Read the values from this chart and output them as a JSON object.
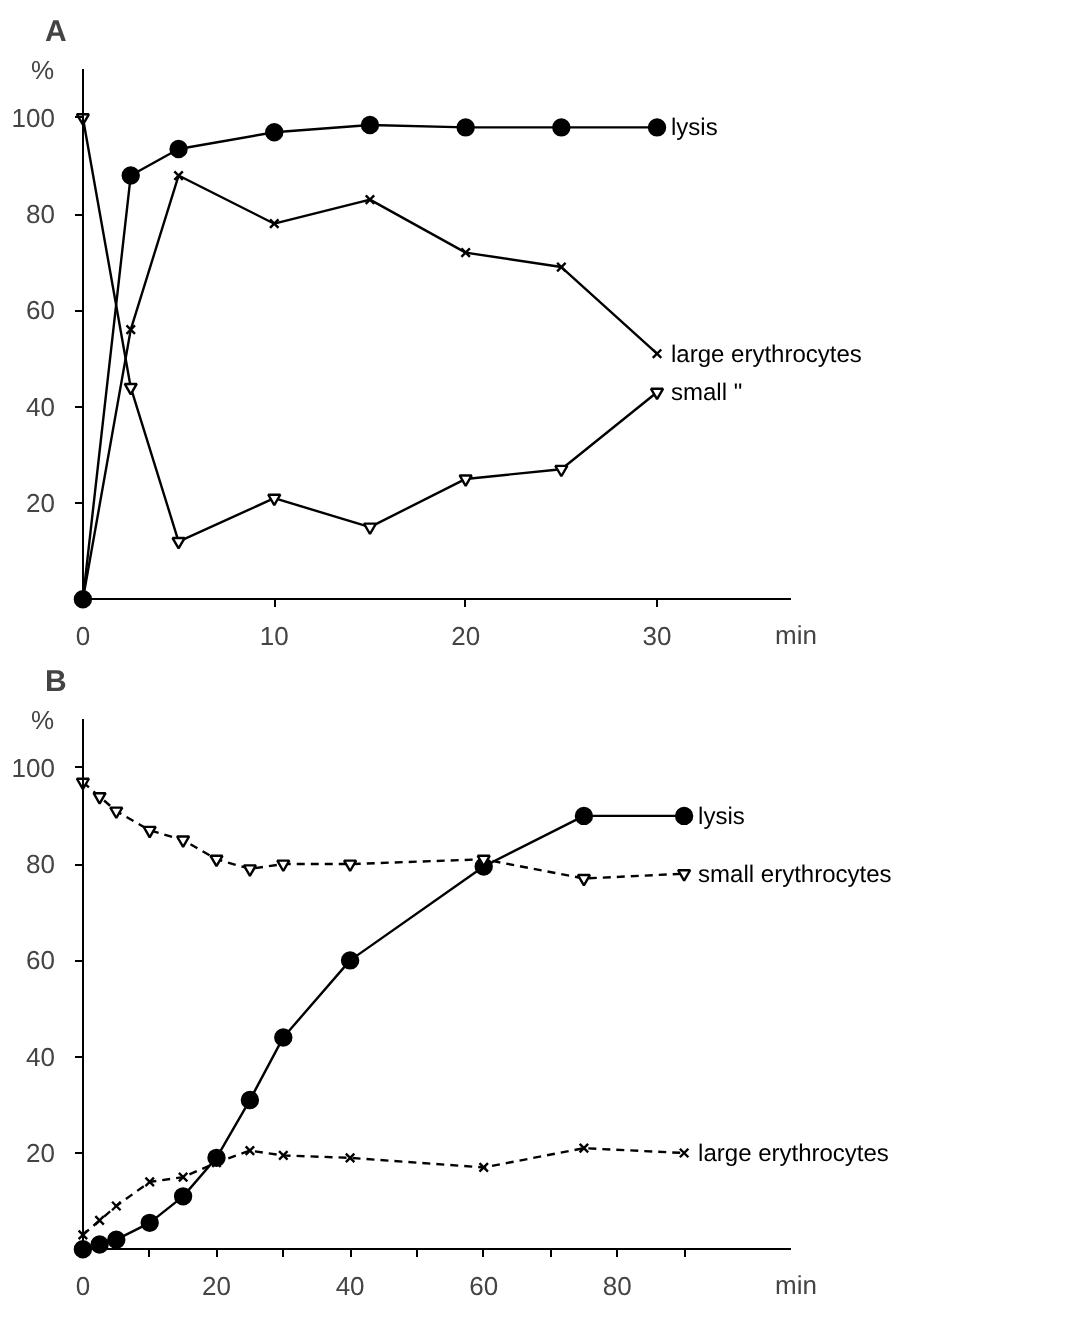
{
  "chart_data": [
    {
      "type": "line",
      "title": "A",
      "ylabel": "%",
      "xlabel": "min",
      "xlim": [
        0,
        37
      ],
      "ylim": [
        0,
        110
      ],
      "xticks": [
        0,
        10,
        20,
        30
      ],
      "yticks": [
        {
          "value": 0,
          "label": null
        },
        20,
        40,
        60,
        80,
        100
      ],
      "grid": false,
      "legend": false,
      "series": [
        {
          "name": "lysis",
          "color": "#000000",
          "marker": "circle",
          "line_style": "solid",
          "x": [
            0,
            2.5,
            5,
            10,
            15,
            20,
            25,
            30
          ],
          "values": [
            0,
            88,
            93.5,
            97,
            98.5,
            98,
            98,
            98
          ]
        },
        {
          "name": "large erythrocytes",
          "color": "#000000",
          "marker": "cross",
          "line_style": "solid",
          "x": [
            0,
            2.5,
            5,
            10,
            15,
            20,
            25,
            30
          ],
          "values": [
            0,
            56,
            88,
            78,
            83,
            72,
            69,
            51
          ]
        },
        {
          "name": "small        \"",
          "color": "#000000",
          "marker": "triangle",
          "line_style": "solid",
          "x": [
            0,
            2.5,
            5,
            10,
            15,
            20,
            25,
            30
          ],
          "values": [
            100,
            44,
            12,
            21,
            15,
            25,
            27,
            43
          ]
        }
      ]
    },
    {
      "type": "line",
      "title": "B",
      "ylabel": "%",
      "xlabel": "min",
      "xlim": [
        0,
        106
      ],
      "ylim": [
        0,
        110
      ],
      "xticks": [
        0,
        {
          "value": 10,
          "label": null
        },
        20,
        {
          "value": 30,
          "label": null
        },
        40,
        {
          "value": 50,
          "label": null
        },
        60,
        {
          "value": 70,
          "label": null
        },
        80,
        {
          "value": 90,
          "label": null
        }
      ],
      "yticks": [
        {
          "value": 0,
          "label": null
        },
        20,
        40,
        60,
        80,
        100
      ],
      "grid": false,
      "legend": false,
      "series": [
        {
          "name": "lysis",
          "color": "#000000",
          "marker": "circle",
          "line_style": "solid",
          "x": [
            0,
            2.5,
            5,
            10,
            15,
            20,
            25,
            30,
            40,
            60,
            75,
            90
          ],
          "values": [
            0,
            1,
            2,
            5.5,
            11,
            19,
            31,
            44,
            60,
            79.5,
            90,
            90
          ]
        },
        {
          "name": "small erythrocytes",
          "color": "#000000",
          "marker": "triangle",
          "line_style": "dashed",
          "x": [
            0,
            2.5,
            5,
            10,
            15,
            20,
            25,
            30,
            40,
            60,
            75,
            90
          ],
          "values": [
            97,
            94,
            91,
            87,
            85,
            81,
            79,
            80,
            80,
            81,
            77,
            78
          ]
        },
        {
          "name": "large erythrocytes",
          "color": "#000000",
          "marker": "cross",
          "line_style": "dashed",
          "x": [
            0,
            2.5,
            5,
            10,
            15,
            20,
            25,
            30,
            40,
            60,
            75,
            90
          ],
          "values": [
            3,
            6,
            9,
            14,
            15,
            18,
            20.5,
            19.5,
            19,
            17,
            21,
            20
          ]
        }
      ]
    }
  ]
}
